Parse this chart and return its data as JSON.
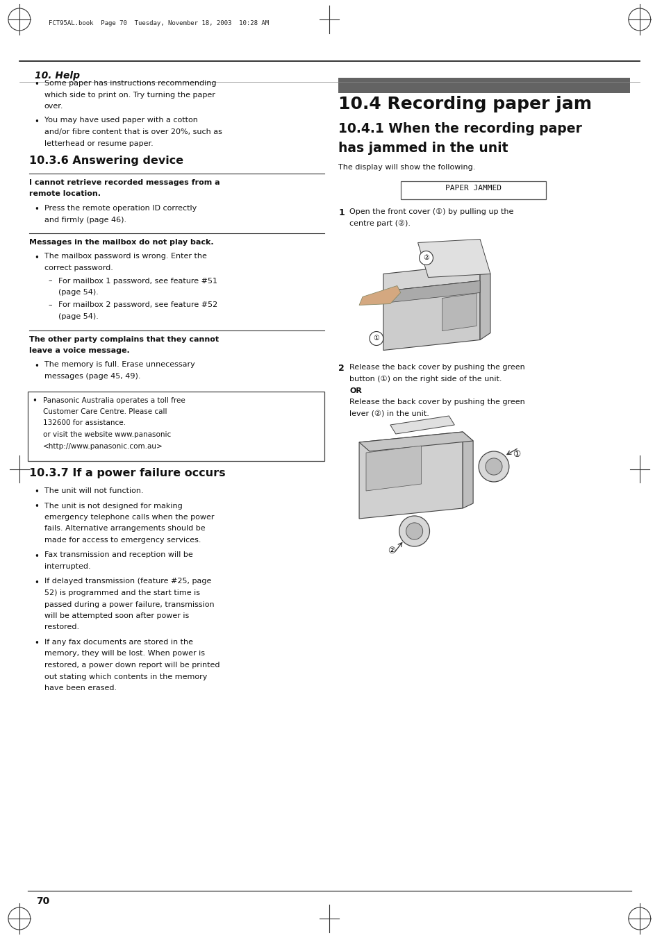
{
  "page_bg": "#ffffff",
  "page_number": "70",
  "header_text": "10. Help",
  "header_file": "FCT95AL.book  Page 70  Tuesday, November 18, 2003  10:28 AM",
  "section_bar_color": "#636363",
  "left_col_bullets_1": [
    "Some paper has instructions recommending which side to print on. Try turning the paper over.",
    "You may have used paper with a cotton and/or fibre content that is over 20%, such as letterhead or resume paper."
  ],
  "section_answering": "10.3.6 Answering device",
  "ans_sub1_title_lines": [
    "I cannot retrieve recorded messages from a",
    "remote location."
  ],
  "ans_sub1_bullets": [
    "Press the remote operation ID correctly and firmly (page 46)."
  ],
  "ans_sub2_title": "Messages in the mailbox do not play back.",
  "ans_sub2_main_bullet_lines": [
    "The mailbox password is wrong. Enter the",
    "correct password."
  ],
  "ans_sub2_subbullets": [
    [
      "For mailbox 1 password, see feature #51",
      "(page 54)."
    ],
    [
      "For mailbox 2 password, see feature #52",
      "(page 54)."
    ]
  ],
  "ans_sub3_title_lines": [
    "The other party complains that they cannot",
    "leave a voice message."
  ],
  "ans_sub3_bullets": [
    "The memory is full. Erase unnecessary messages (page 45, 49)."
  ],
  "notice_lines": [
    "Panasonic Australia operates a toll free",
    "Customer Care Centre. Please call",
    "132600 for assistance.",
    "or visit the website www.panasonic",
    "<http://www.panasonic.com.au>"
  ],
  "section_power": "10.3.7 If a power failure occurs",
  "power_bullets": [
    [
      "The unit will not function."
    ],
    [
      "The unit is not designed for making",
      "emergency telephone calls when the power",
      "fails. Alternative arrangements should be",
      "made for access to emergency services."
    ],
    [
      "Fax transmission and reception will be",
      "interrupted."
    ],
    [
      "If delayed transmission (feature #25, page",
      "52) is programmed and the start time is",
      "passed during a power failure, transmission",
      "will be attempted soon after power is",
      "restored."
    ],
    [
      "If any fax documents are stored in the",
      "memory, they will be lost. When power is",
      "restored, a power down report will be printed",
      "out stating which contents in the memory",
      "have been erased."
    ]
  ],
  "right_title": "10.4 Recording paper jam",
  "right_sub_title_lines": [
    "10.4.1 When the recording paper",
    "has jammed in the unit"
  ],
  "right_intro": "The display will show the following.",
  "display_text": "PAPER JAMMED",
  "step1_label": "1",
  "step1_lines": [
    "Open the front cover (①) by pulling up the",
    "centre part (②)."
  ],
  "step2_label": "2",
  "step2_lines": [
    "Release the back cover by pushing the green",
    "button (①) on the right side of the unit.",
    "OR",
    "Release the back cover by pushing the green",
    "lever (②) in the unit."
  ]
}
